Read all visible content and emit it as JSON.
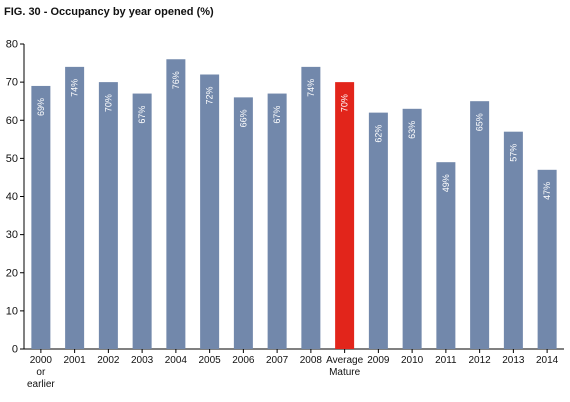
{
  "chart_data": {
    "type": "bar",
    "title": "FIG. 30 - Occupancy by year opened (%)",
    "xlabel": "",
    "ylabel": "",
    "ylim": [
      0,
      80
    ],
    "yticks": [
      0,
      10,
      20,
      30,
      40,
      50,
      60,
      70,
      80
    ],
    "grid": false,
    "categories": [
      [
        "2000",
        "or",
        "earlier"
      ],
      [
        "2001"
      ],
      [
        "2002"
      ],
      [
        "2003"
      ],
      [
        "2004"
      ],
      [
        "2005"
      ],
      [
        "2006"
      ],
      [
        "2007"
      ],
      [
        "2008"
      ],
      [
        "Average",
        "Mature"
      ],
      [
        "2009"
      ],
      [
        "2010"
      ],
      [
        "2011"
      ],
      [
        "2012"
      ],
      [
        "2013"
      ],
      [
        "2014"
      ]
    ],
    "values": [
      69,
      74,
      70,
      67,
      76,
      72,
      66,
      67,
      74,
      70,
      62,
      63,
      49,
      65,
      57,
      47
    ],
    "data_labels": [
      "69%",
      "74%",
      "70%",
      "67%",
      "76%",
      "72%",
      "66%",
      "67%",
      "74%",
      "70%",
      "62%",
      "63%",
      "49%",
      "65%",
      "57%",
      "47%"
    ],
    "highlight_index": 9,
    "colors": {
      "bar": "#7288ab",
      "highlight": "#e2251b",
      "label": "#ffffff",
      "axis": "#000000"
    }
  }
}
